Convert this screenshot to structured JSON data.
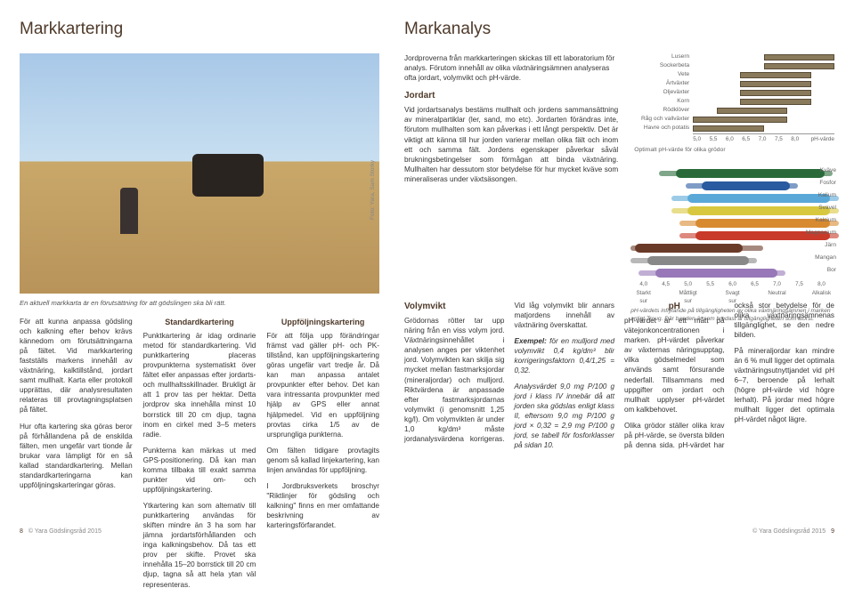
{
  "left": {
    "title": "Markkartering",
    "hero_caption": "En aktuell markkarta är en förutsättning för att gödslingen ska bli rätt.",
    "photo_credit": "Foto: Yara, Sam Storky",
    "intro1": "För att kunna anpassa gödsling och kalkning efter behov krävs kännedom om förutsättningarna på fältet. Vid markkartering fastställs markens innehåll av växtnäring, kalktillstånd, jordart samt mullhalt. Karta eller protokoll upprättas, där analysresultaten relateras till provtagningsplatsen på fältet.",
    "intro2": "Hur ofta kartering ska göras beror på förhållandena på de enskilda fälten, men ungefär vart tionde år brukar vara lämpligt för en så kallad standardkartering. Mellan standardkarteringarna kan uppföljningskarteringar göras.",
    "std_h": "Standardkartering",
    "std1": "Punktkartering är idag ordinarie metod för standardkartering. Vid punktkartering placeras provpunkterna systematiskt över fältet eller anpassas efter jordarts- och mullhaltsskillnader. Brukligt är att 1 prov tas per hektar. Detta jordprov ska innehålla minst 10 borrstick till 20 cm djup, tagna inom en cirkel med 3–5 meters radie.",
    "std2": "Punkterna kan märkas ut med GPS-positionering. Då kan man komma tillbaka till exakt samma punkter vid om- och uppföljningskartering.",
    "std3": "Ytkartering kan som alternativ till punktkartering användas för skiften mindre än 3 ha som har jämna jordartsförhållanden och inga kalkningsbehov. Då tas ett prov per skifte. Provet ska innehålla 15–20 borrstick till 20 cm djup, tagna så att hela ytan väl representeras.",
    "upp_h": "Uppföljningskartering",
    "upp1": "För att följa upp förändringar främst vad gäller pH- och PK-tillstånd, kan uppföljningskartering göras ungefär vart tredje år. Då kan man anpassa antalet provpunkter efter behov. Det kan vara intressanta provpunkter med hjälp av GPS eller annat hjälpmedel. Vid en uppföljning provtas cirka 1/5 av de ursprungliga punkterna.",
    "upp2": "Om fälten tidigare provtagits genom så kallad linjekartering, kan linjen användas för uppföljning.",
    "upp3": "I Jordbruksverkets broschyr \"Riktlinjer för gödsling och kalkning\" finns en mer omfattande beskrivning av karteringsförfarandet."
  },
  "right": {
    "title": "Markanalys",
    "intro": "Jordproverna från markkarteringen skickas till ett laboratorium för analys. Förutom innehåll av olika växtnäringsämnen analyseras ofta jordart, volymvikt och pH-värde.",
    "jordart_h": "Jordart",
    "jordart1": "Vid jordartsanalys bestäms mullhalt och jordens sammansättning av mineralpartiklar (ler, sand, mo etc). Jordarten förändras inte, förutom mullhalten som kan påverkas i ett långt perspektiv. Det är viktigt att känna till hur jorden varierar mellan olika fält och inom ett och samma fält. Jordens egenskaper påverkar såväl brukningsbetingelser som förmågan att binda växtnäring. Mullhalten har dessutom stor betydelse för hur mycket kväve som mineraliseras under växtsäsongen.",
    "vol_h": "Volymvikt",
    "vol1": "Grödornas rötter tar upp näring från en viss volym jord. Växtnäringsinnehållet i analysen anges per viktenhet jord. Volymvikten kan skilja sig mycket mellan fastmarksjordar (mineraljordar) och mulljord. Riktvärdena är anpassade efter fastmarksjordarnas volymvikt (i genomsnitt 1,25 kg/l). Om volymvikten är under 1,0 kg/dm³ måste jordanalysvärdena korrigeras. Vid låg volymvikt blir annars matjordens innehåll av växtnäring överskattat.",
    "vol_ex_label": "Exempel:",
    "vol_ex": "för en mulljord med volymvikt 0,4 kg/dm³ blir korrigeringsfaktorn 0,4/1,25 = 0,32.",
    "vol_ex2": "Analysvärdet 9,0 mg P/100 g jord i klass IV innebär då att jorden ska gödslas enligt klass II, eftersom 9,0 mg P/100 g jord × 0,32 = 2,9 mg P/100 g jord, se tabell för fosforklasser på sidan 10.",
    "ph_h": "pH",
    "ph1": "pH-värdet är ett mått på vätejonkoncentrationen i marken. pH-värdet påverkar av växternas näringsupptag, vilka gödselmedel som används samt försurande nederfall. Tillsammans med uppgifter om jordart och mullhalt upplyser pH-värdet om kalkbehovet.",
    "ph2": "Olika grödor ställer olika krav på pH-värde, se översta bilden på denna sida. pH-värdet har också stor betydelse för de olika växtnäringsämnenas tillgänglighet, se den nedre bilden.",
    "ph3": "På mineraljordar kan mindre än 6 % mull ligger det optimala växtnäringsutnyttjandet vid pH 6–7, beroende på lerhalt (högre pH-värde vid högre lerhalt). På jordar med högre mullhalt ligger det optimala pH-värdet något lägre.",
    "chart1": {
      "title": "Optimalt pH-värde för olika grödor",
      "axis_label": "pH-värde",
      "xmin": 5.0,
      "xmax": 8.0,
      "ticks": [
        "5,0",
        "5,5",
        "6,0",
        "6,5",
        "7,0",
        "7,5",
        "8,0"
      ],
      "bar_color": "#8a7a5c",
      "crops": [
        {
          "label": "Lusern",
          "lo": 6.5,
          "hi": 8.0
        },
        {
          "label": "Sockerbeta",
          "lo": 6.5,
          "hi": 8.0
        },
        {
          "label": "Vete",
          "lo": 6.0,
          "hi": 7.5
        },
        {
          "label": "Ärtväxter",
          "lo": 6.0,
          "hi": 7.5
        },
        {
          "label": "Oljeväxter",
          "lo": 6.0,
          "hi": 7.5
        },
        {
          "label": "Korn",
          "lo": 6.0,
          "hi": 7.5
        },
        {
          "label": "Rödklöver",
          "lo": 5.5,
          "hi": 7.0
        },
        {
          "label": "Råg och vallväxter",
          "lo": 5.0,
          "hi": 7.0
        },
        {
          "label": "Havre och potatis",
          "lo": 5.0,
          "hi": 6.5
        }
      ]
    },
    "chart2": {
      "caption": "pH-värdets inflytande på tillgängligheten av olika växtnäringsämnen i marken enligt Troug. Där banden är som bredast är tillgängligheten som störst.",
      "axis_top": [
        "4,0",
        "4,5",
        "5,0",
        "5,5",
        "6,0",
        "6,5",
        "7,0",
        "7,5",
        "8,0"
      ],
      "axis_bot": [
        "Starkt sur",
        "",
        "Måttligt sur",
        "",
        "Svagt sur",
        "",
        "Neutral",
        "",
        "Alkalisk"
      ],
      "axis_right": "pH-värde Reaktion",
      "nutrients": [
        {
          "label": "Kväve",
          "color": "#2a6a3a",
          "lo": 0.22,
          "hi": 0.95
        },
        {
          "label": "Fosfor",
          "color": "#2a5aa0",
          "lo": 0.35,
          "hi": 0.78
        },
        {
          "label": "Kalium",
          "color": "#5aa8d8",
          "lo": 0.28,
          "hi": 0.98
        },
        {
          "label": "Svavel",
          "color": "#d8c840",
          "lo": 0.28,
          "hi": 0.98
        },
        {
          "label": "Kalcium",
          "color": "#d88a30",
          "lo": 0.32,
          "hi": 0.98
        },
        {
          "label": "Magnesium",
          "color": "#c83a2a",
          "lo": 0.32,
          "hi": 0.98
        },
        {
          "label": "Järn",
          "color": "#6a3a28",
          "lo": 0.02,
          "hi": 0.55
        },
        {
          "label": "Mangan",
          "color": "#888",
          "lo": 0.08,
          "hi": 0.58
        },
        {
          "label": "Bor",
          "color": "#9878b8",
          "lo": 0.12,
          "hi": 0.72
        }
      ]
    }
  },
  "footer": {
    "pub": "© Yara Gödslingsråd 2015",
    "left_pg": "8",
    "right_pg": "9"
  }
}
